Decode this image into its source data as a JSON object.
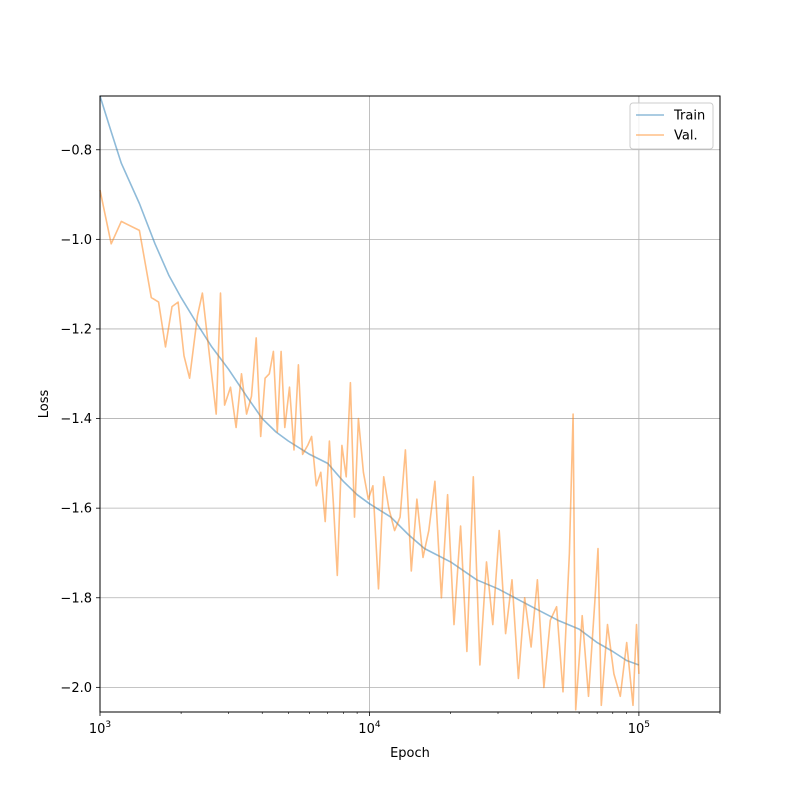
{
  "chart_data": {
    "type": "line",
    "title": "",
    "xlabel": "Epoch",
    "ylabel": "Loss",
    "xscale": "log",
    "xlim": [
      1000,
      200000
    ],
    "ylim": [
      -2.055,
      -0.68
    ],
    "grid": true,
    "legend_position": "top-right",
    "x_ticks": [
      {
        "value": 1000,
        "base": "10",
        "exp": "3"
      },
      {
        "value": 10000,
        "base": "10",
        "exp": "4"
      },
      {
        "value": 100000,
        "base": "10",
        "exp": "5"
      }
    ],
    "y_ticks": [
      {
        "value": -0.8,
        "label": "−0.8"
      },
      {
        "value": -1.0,
        "label": "−1.0"
      },
      {
        "value": -1.2,
        "label": "−1.2"
      },
      {
        "value": -1.4,
        "label": "−1.4"
      },
      {
        "value": -1.6,
        "label": "−1.6"
      },
      {
        "value": -1.8,
        "label": "−1.8"
      },
      {
        "value": -2.0,
        "label": "−2.0"
      }
    ],
    "series": [
      {
        "name": "Train",
        "color": "#1f77b4",
        "x": [
          1000,
          1100,
          1200,
          1400,
          1600,
          1800,
          2000,
          2300,
          2600,
          3000,
          3500,
          4000,
          4500,
          5000,
          6000,
          7000,
          8000,
          9000,
          10000,
          12000,
          14000,
          16000,
          20000,
          25000,
          30000,
          40000,
          50000,
          60000,
          70000,
          80000,
          90000,
          100000
        ],
        "y": [
          -0.68,
          -0.76,
          -0.83,
          -0.92,
          -1.01,
          -1.08,
          -1.13,
          -1.19,
          -1.24,
          -1.29,
          -1.35,
          -1.4,
          -1.43,
          -1.45,
          -1.48,
          -1.5,
          -1.54,
          -1.57,
          -1.59,
          -1.62,
          -1.66,
          -1.69,
          -1.72,
          -1.76,
          -1.78,
          -1.82,
          -1.85,
          -1.87,
          -1.9,
          -1.92,
          -1.94,
          -1.95
        ]
      },
      {
        "name": "Val.",
        "color": "#ff7f0e",
        "x": [
          1000,
          1100,
          1200,
          1400,
          1550,
          1650,
          1750,
          1850,
          1950,
          2050,
          2150,
          2300,
          2400,
          2550,
          2700,
          2800,
          2900,
          3050,
          3200,
          3350,
          3500,
          3650,
          3800,
          3950,
          4100,
          4250,
          4400,
          4550,
          4700,
          4850,
          5050,
          5250,
          5450,
          5650,
          5900,
          6100,
          6350,
          6600,
          6850,
          7100,
          7350,
          7600,
          7900,
          8200,
          8500,
          8800,
          9100,
          9500,
          9900,
          10300,
          10800,
          11300,
          11800,
          12400,
          13000,
          13600,
          14300,
          15000,
          15800,
          16600,
          17500,
          18500,
          19500,
          20600,
          21800,
          23000,
          24300,
          25700,
          27200,
          28700,
          30300,
          32000,
          33800,
          35700,
          37700,
          39800,
          42000,
          44400,
          46900,
          49500,
          52300,
          55200,
          57000,
          58300,
          61600,
          65000,
          68600,
          70500,
          72500,
          76500,
          80800,
          85300,
          90100,
          95100,
          98000,
          100000
        ],
        "y": [
          -0.89,
          -1.01,
          -0.96,
          -0.98,
          -1.13,
          -1.14,
          -1.24,
          -1.15,
          -1.14,
          -1.26,
          -1.31,
          -1.17,
          -1.12,
          -1.26,
          -1.39,
          -1.12,
          -1.37,
          -1.33,
          -1.42,
          -1.3,
          -1.39,
          -1.35,
          -1.22,
          -1.44,
          -1.31,
          -1.3,
          -1.25,
          -1.43,
          -1.25,
          -1.42,
          -1.33,
          -1.47,
          -1.28,
          -1.48,
          -1.46,
          -1.44,
          -1.55,
          -1.52,
          -1.63,
          -1.45,
          -1.59,
          -1.75,
          -1.46,
          -1.53,
          -1.32,
          -1.62,
          -1.4,
          -1.52,
          -1.58,
          -1.55,
          -1.78,
          -1.53,
          -1.6,
          -1.65,
          -1.62,
          -1.47,
          -1.74,
          -1.58,
          -1.71,
          -1.65,
          -1.54,
          -1.8,
          -1.57,
          -1.86,
          -1.64,
          -1.92,
          -1.53,
          -1.95,
          -1.72,
          -1.86,
          -1.65,
          -1.88,
          -1.76,
          -1.98,
          -1.8,
          -1.91,
          -1.76,
          -2.0,
          -1.85,
          -1.82,
          -2.01,
          -1.7,
          -1.39,
          -2.05,
          -1.84,
          -2.02,
          -1.81,
          -1.69,
          -2.04,
          -1.86,
          -1.97,
          -2.02,
          -1.9,
          -2.04,
          -1.86,
          -1.97
        ]
      }
    ]
  }
}
